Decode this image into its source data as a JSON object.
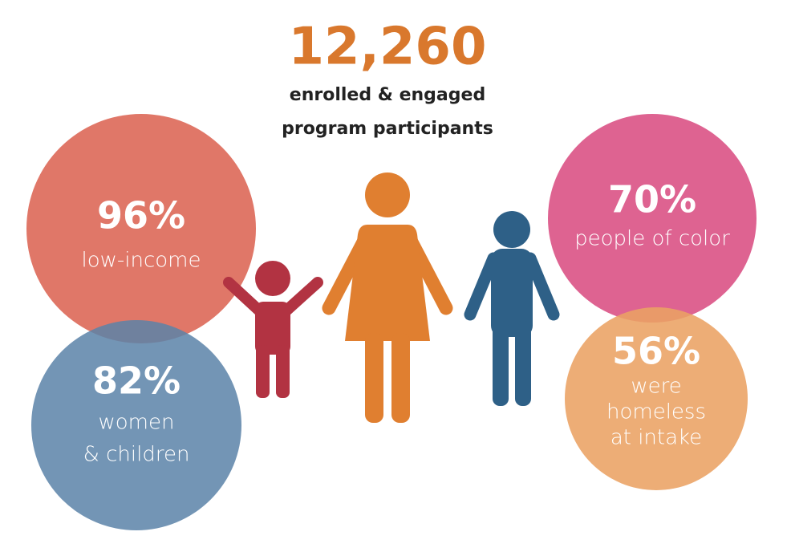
{
  "header": {
    "number": "12,260",
    "subtitle": [
      "enrolled & engaged",
      "program participants"
    ]
  },
  "stats": [
    {
      "value": "96%",
      "label": [
        "low-income"
      ]
    },
    {
      "value": "82%",
      "label": [
        "women",
        "& children"
      ]
    },
    {
      "value": "70%",
      "label": [
        "people of color"
      ]
    },
    {
      "value": "56%",
      "label": [
        "were",
        "homeless",
        "at intake"
      ]
    }
  ]
}
